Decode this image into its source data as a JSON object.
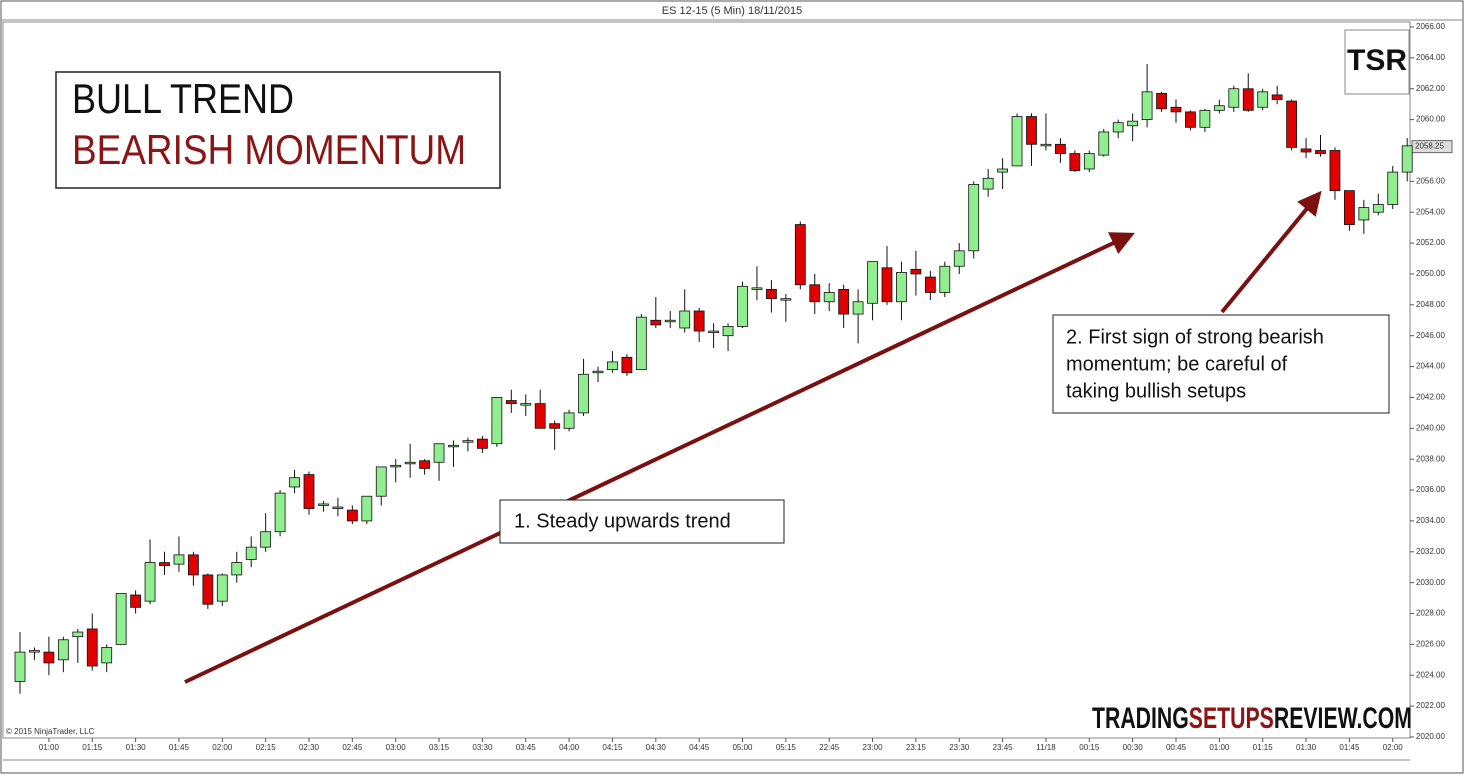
{
  "chart_data": {
    "type": "candlestick",
    "title": "ES 12-15 (5 Min)  18/11/2015",
    "headline": [
      "BULL TREND",
      "BEARISH MOMENTUM"
    ],
    "logo": "TSR",
    "copyright": "© 2015 NinjaTrader, LLC",
    "watermark": [
      "TRADING",
      "SETUPS",
      "REVIEW.COM"
    ],
    "annotations": [
      [
        "1. Steady upwards trend"
      ],
      [
        "2. First sign of strong bearish",
        "momentum;  be careful of",
        "taking bullish  setups"
      ]
    ],
    "up_color": "#90ee90",
    "down_color": "#e00000",
    "last_price": 2058.25,
    "ylim": [
      2020,
      2066
    ],
    "yticks": [
      {
        "value": 2020,
        "label": "2020.00"
      },
      {
        "value": 2022,
        "label": "2022.00"
      },
      {
        "value": 2024,
        "label": "2024.00"
      },
      {
        "value": 2026,
        "label": "2026.00"
      },
      {
        "value": 2028,
        "label": "2028.00"
      },
      {
        "value": 2030,
        "label": "2030.00"
      },
      {
        "value": 2032,
        "label": "2032.00"
      },
      {
        "value": 2034,
        "label": "2034.00"
      },
      {
        "value": 2036,
        "label": "2036.00"
      },
      {
        "value": 2038,
        "label": "2038.00"
      },
      {
        "value": 2040,
        "label": "2040.00"
      },
      {
        "value": 2042,
        "label": "2042.00"
      },
      {
        "value": 2044,
        "label": "2044.00"
      },
      {
        "value": 2046,
        "label": "2046.00"
      },
      {
        "value": 2048,
        "label": "2048.00"
      },
      {
        "value": 2050,
        "label": "2050.00"
      },
      {
        "value": 2052,
        "label": "2052.00"
      },
      {
        "value": 2054,
        "label": "2054.00"
      },
      {
        "value": 2056,
        "label": "2056.00"
      },
      {
        "value": 2058,
        "label": "2058.00"
      },
      {
        "value": 2060,
        "label": "2060.00"
      },
      {
        "value": 2062,
        "label": "2062.00"
      },
      {
        "value": 2064,
        "label": "2064.00"
      },
      {
        "value": 2066,
        "label": "2066.00"
      }
    ],
    "categories": [
      null,
      null,
      "01:00",
      null,
      null,
      "01:15",
      null,
      null,
      "01:30",
      null,
      null,
      "01:45",
      null,
      null,
      "02:00",
      null,
      null,
      "02:15",
      null,
      null,
      "02:30",
      null,
      null,
      "02:45",
      null,
      null,
      "03:00",
      null,
      null,
      "03:15",
      null,
      null,
      "03:30",
      null,
      null,
      "03:45",
      null,
      null,
      "04:00",
      null,
      null,
      "04:15",
      null,
      null,
      "04:30",
      null,
      null,
      "04:45",
      null,
      null,
      "05:00",
      null,
      null,
      "05:15",
      null,
      null,
      "22:45",
      null,
      null,
      "23:00",
      null,
      null,
      "23:15",
      null,
      null,
      "23:30",
      null,
      null,
      "23:45",
      null,
      null,
      "11/18",
      null,
      null,
      "00:15",
      null,
      null,
      "00:30",
      null,
      null,
      "00:45",
      null,
      null,
      "01:00",
      null,
      null,
      "01:15",
      null,
      null,
      "01:30",
      null,
      null,
      "01:45",
      null,
      null,
      "02:00",
      null
    ],
    "open": [
      2023.6,
      2025.5,
      2025.5,
      2025,
      2026.5,
      2027,
      2024.8,
      2026,
      2029.2,
      2028.8,
      2031.3,
      2031.2,
      2031.8,
      2030.5,
      2028.8,
      2030.5,
      2031.5,
      2032.3,
      2033.3,
      2036.2,
      2037,
      2035,
      2034.8,
      2034.7,
      2034,
      2035.6,
      2037.5,
      2037.7,
      2037.9,
      2037.8,
      2038.8,
      2039.1,
      2039.3,
      2039,
      2041.8,
      2041.5,
      2041.6,
      2040.3,
      2040,
      2041,
      2043.6,
      2043.8,
      2044.6,
      2043.8,
      2047,
      2046.9,
      2046.5,
      2047.6,
      2046.2,
      2046,
      2046.6,
      2049,
      2049,
      2048.3,
      2053.2,
      2049.3,
      2048.2,
      2049,
      2047.4,
      2048.1,
      2050.4,
      2048.2,
      2050.3,
      2049.8,
      2048.8,
      2050.5,
      2051.5,
      2055.5,
      2056.6,
      2057,
      2060.2,
      2058.3,
      2058.4,
      2057.8,
      2056.8,
      2057.7,
      2059.2,
      2059.6,
      2060,
      2061.7,
      2060.8,
      2060.5,
      2059.5,
      2060.6,
      2060.8,
      2062,
      2060.8,
      2061.6,
      2061.2,
      2058.1,
      2058,
      2058,
      2055.4,
      2053.5,
      2054,
      2054.5,
      2056.6
    ],
    "high": [
      2026.8,
      2025.8,
      2026.5,
      2026.5,
      2027,
      2028,
      2026,
      2029.3,
      2029.5,
      2032.8,
      2032,
      2033,
      2032,
      2030.6,
      2030.6,
      2032,
      2033,
      2034.5,
      2036,
      2037.3,
      2037.2,
      2035.3,
      2035.5,
      2035,
      2035.6,
      2037.5,
      2038,
      2039,
      2038,
      2039,
      2039.2,
      2039.4,
      2039.5,
      2042,
      2042.5,
      2042.2,
      2042.5,
      2040.5,
      2041.2,
      2044.5,
      2044,
      2045,
      2044.8,
      2047.4,
      2048.5,
      2047.6,
      2049,
      2047.8,
      2046.8,
      2046.8,
      2049.5,
      2050.5,
      2049.6,
      2048.7,
      2053.4,
      2050,
      2049.4,
      2049.3,
      2049,
      2050.8,
      2051.8,
      2050.8,
      2051.5,
      2050.2,
      2050.8,
      2052,
      2056,
      2056.8,
      2057.5,
      2060.4,
      2060.4,
      2060.4,
      2058.8,
      2058,
      2058,
      2059.4,
      2060,
      2060.4,
      2063.6,
      2061.8,
      2061.3,
      2060.6,
      2060.7,
      2061.3,
      2062.2,
      2063,
      2062,
      2062.2,
      2061.3,
      2058.8,
      2059,
      2058.2,
      2055.4,
      2054.8,
      2055.2,
      2057,
      2058.8
    ],
    "low": [
      2022.8,
      2025,
      2024,
      2024.2,
      2024.8,
      2024.3,
      2024.2,
      2026,
      2028,
      2028.6,
      2030.5,
      2030.7,
      2029.8,
      2028.3,
      2028.5,
      2030,
      2031,
      2032,
      2033,
      2035.8,
      2034.4,
      2034.6,
      2034.3,
      2033.8,
      2033.8,
      2035,
      2036.5,
      2036.8,
      2037,
      2036.6,
      2037.5,
      2038.5,
      2038.4,
      2038.8,
      2041,
      2040.8,
      2040,
      2038.6,
      2039.8,
      2040.8,
      2043,
      2043.6,
      2043.4,
      2043.8,
      2046.5,
      2046.5,
      2046.2,
      2045.6,
      2045.2,
      2045,
      2046.5,
      2048.3,
      2047.5,
      2046.9,
      2049,
      2047.4,
      2047.6,
      2046.5,
      2045.5,
      2047,
      2048,
      2047,
      2048.6,
      2048.3,
      2048.5,
      2050,
      2051,
      2055,
      2055.5,
      2057,
      2057,
      2058,
      2057.2,
      2056.6,
      2056.6,
      2057.6,
      2058.8,
      2058.6,
      2059.5,
      2060.5,
      2059.8,
      2059.3,
      2059.2,
      2060.4,
      2060.5,
      2060.5,
      2060.6,
      2061,
      2058,
      2057.5,
      2057.6,
      2054.8,
      2052.8,
      2052.6,
      2053.8,
      2054.2,
      2056
    ],
    "close": [
      2025.5,
      2025.6,
      2024.8,
      2026.3,
      2026.8,
      2024.6,
      2025.8,
      2029.3,
      2028.4,
      2031.3,
      2031.1,
      2031.8,
      2030.5,
      2028.6,
      2030.5,
      2031.3,
      2032.3,
      2033.3,
      2035.8,
      2036.8,
      2034.8,
      2035.1,
      2034.9,
      2034,
      2035.6,
      2037.5,
      2037.6,
      2037.8,
      2037.4,
      2039,
      2038.9,
      2039.2,
      2038.7,
      2042,
      2041.6,
      2041.6,
      2040,
      2040,
      2041,
      2043.5,
      2043.7,
      2044.3,
      2043.6,
      2047.2,
      2046.7,
      2047,
      2047.6,
      2046.3,
      2046.3,
      2046.6,
      2049.2,
      2049.1,
      2048.4,
      2048.4,
      2049.3,
      2048.2,
      2048.8,
      2047.4,
      2048.2,
      2050.8,
      2048.2,
      2050.1,
      2050,
      2048.8,
      2050.5,
      2051.5,
      2055.8,
      2056.2,
      2056.8,
      2060.2,
      2058.4,
      2058.4,
      2057.8,
      2056.7,
      2057.8,
      2059.2,
      2059.8,
      2059.9,
      2061.8,
      2060.7,
      2060.5,
      2059.5,
      2060.6,
      2060.9,
      2062,
      2060.6,
      2061.8,
      2061.3,
      2058.2,
      2057.9,
      2057.8,
      2055.4,
      2053.2,
      2054.3,
      2054.5,
      2056.6,
      2058.3
    ]
  }
}
